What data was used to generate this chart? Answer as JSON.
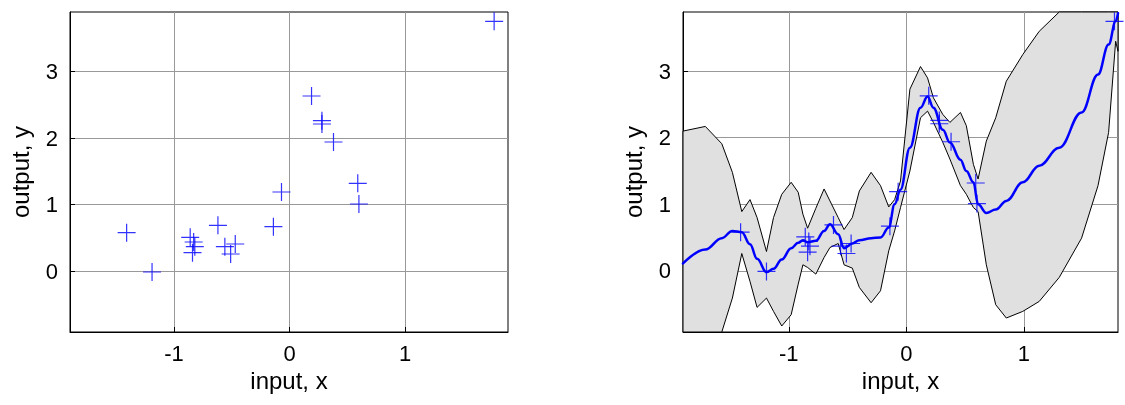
{
  "chart_data": [
    {
      "type": "scatter",
      "xlabel": "input, x",
      "ylabel": "output, y",
      "color": "#0000ff",
      "marker": "cross",
      "grid": true,
      "x": [
        -1.41,
        -1.19,
        -0.86,
        -0.83,
        -0.82,
        -0.84,
        -0.62,
        -0.56,
        -0.51,
        -0.47,
        -0.14,
        -0.07,
        0.19,
        0.28,
        0.28,
        0.38,
        0.59,
        0.6,
        1.77
      ],
      "values": [
        0.58,
        -0.01,
        0.51,
        0.44,
        0.37,
        0.28,
        0.69,
        0.37,
        0.26,
        0.41,
        0.67,
        1.19,
        2.63,
        2.26,
        2.21,
        1.94,
        1.32,
        1.01,
        3.75
      ],
      "xlim": [
        -1.9,
        1.89
      ],
      "xticks": [
        -1,
        0,
        1
      ],
      "ylim": [
        -0.91,
        3.89
      ],
      "yticks": [
        0,
        1,
        2,
        3
      ]
    },
    {
      "type": "line",
      "xlabel": "input, x",
      "ylabel": "output, y",
      "grid": true,
      "xlim": [
        -1.9,
        1.8
      ],
      "xticks": [
        -1,
        0,
        1
      ],
      "ylim": [
        -0.92,
        3.89
      ],
      "yticks": [
        0,
        1,
        2,
        3
      ],
      "series": [
        {
          "type": "line",
          "color": "#0000ff",
          "marker": "none",
          "line_style": "solid",
          "x": [
            -1.9,
            -1.71,
            -1.57,
            -1.48,
            -1.4,
            -1.33,
            -1.27,
            -1.19,
            -1.13,
            -1.06,
            -0.98,
            -0.92,
            -0.88,
            -0.84,
            -0.77,
            -0.7,
            -0.65,
            -0.58,
            -0.53,
            -0.46,
            -0.4,
            -0.3,
            -0.22,
            -0.15,
            -0.1,
            -0.05,
            0.03,
            0.12,
            0.18,
            0.23,
            0.31,
            0.37,
            0.46,
            0.51,
            0.57,
            0.61,
            0.68,
            0.76,
            0.85,
            0.99,
            1.13,
            1.3,
            1.49,
            1.63,
            1.72,
            1.78,
            1.8
          ],
          "values": [
            0.11,
            0.32,
            0.49,
            0.6,
            0.58,
            0.4,
            0.18,
            -0.02,
            0.03,
            0.17,
            0.34,
            0.42,
            0.46,
            0.43,
            0.45,
            0.6,
            0.7,
            0.55,
            0.34,
            0.41,
            0.46,
            0.49,
            0.5,
            0.65,
            1.0,
            1.22,
            1.85,
            2.45,
            2.62,
            2.45,
            2.12,
            1.93,
            1.67,
            1.5,
            1.33,
            1.0,
            0.87,
            0.92,
            1.05,
            1.33,
            1.58,
            1.85,
            2.38,
            2.95,
            3.4,
            3.75,
            3.87
          ],
          "lower": [
            -0.92,
            -0.92,
            -0.92,
            -0.41,
            0.26,
            -0.16,
            -0.55,
            -0.41,
            -0.61,
            -0.83,
            -0.66,
            -0.2,
            0.09,
            0.05,
            -0.05,
            0.2,
            0.35,
            0.41,
            0.09,
            0.04,
            -0.25,
            -0.48,
            -0.3,
            0.3,
            0.6,
            0.95,
            1.5,
            2.3,
            2.4,
            2.23,
            1.93,
            1.68,
            1.28,
            1.15,
            0.95,
            0.89,
            0.09,
            -0.51,
            -0.71,
            -0.61,
            -0.46,
            -0.1,
            0.49,
            1.28,
            2.08,
            3.45,
            3.3
          ],
          "upper": [
            2.1,
            2.17,
            1.91,
            1.48,
            0.89,
            1.07,
            0.8,
            0.29,
            0.8,
            1.15,
            1.33,
            1.18,
            0.85,
            0.64,
            0.94,
            1.23,
            1.05,
            0.8,
            0.62,
            0.8,
            1.2,
            1.48,
            1.28,
            0.96,
            1.07,
            1.35,
            2.73,
            3.07,
            2.9,
            2.6,
            2.35,
            2.23,
            2.38,
            2.18,
            1.6,
            1.38,
            1.95,
            2.3,
            2.85,
            3.25,
            3.6,
            3.89,
            3.89,
            3.89,
            3.89,
            3.89,
            3.89
          ]
        },
        {
          "type": "scatter",
          "color": "#0000ff",
          "marker": "cross",
          "x": [
            -1.41,
            -1.19,
            -0.86,
            -0.83,
            -0.82,
            -0.84,
            -0.62,
            -0.56,
            -0.51,
            -0.47,
            -0.14,
            -0.07,
            0.19,
            0.28,
            0.28,
            0.38,
            0.59,
            0.6,
            1.77
          ],
          "values": [
            0.58,
            -0.01,
            0.51,
            0.44,
            0.37,
            0.28,
            0.69,
            0.37,
            0.26,
            0.41,
            0.67,
            1.19,
            2.63,
            2.26,
            2.21,
            1.94,
            1.32,
            1.01,
            3.75
          ]
        }
      ]
    }
  ]
}
